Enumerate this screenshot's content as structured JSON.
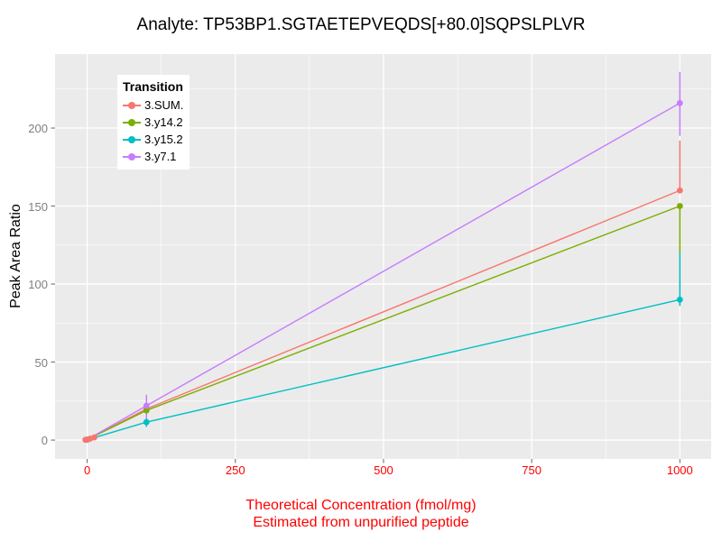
{
  "title": "Analyte: TP53BP1.SGTAETEPVEQDS[+80.0]SQPSLPLVR",
  "y_axis": {
    "label": "Peak Area Ratio"
  },
  "x_axis": {
    "title_line1": "Theoretical Concentration (fmol/mg)",
    "title_line2": "Estimated from unpurified peptide"
  },
  "legend": {
    "title": "Transition",
    "items": [
      {
        "label": "3.SUM.",
        "color": "#F8766D"
      },
      {
        "label": "3.y14.2",
        "color": "#7CAE00"
      },
      {
        "label": "3.y15.2",
        "color": "#00BFC4"
      },
      {
        "label": "3.y7.1",
        "color": "#C77CFF"
      }
    ]
  },
  "colors": {
    "panel_background": "#EBEBEB",
    "gridline": "#FFFFFF",
    "axis_tick": "#666666",
    "x_tick_text": "#FF0000",
    "y_tick_text": "#7F7F7F",
    "x_axis_title": "#FF0000",
    "title_text": "#000000"
  },
  "chart_data": {
    "type": "line",
    "title": "Analyte: TP53BP1.SGTAETEPVEQDS[+80.0]SQPSLPLVR",
    "xlabel": "Theoretical Concentration (fmol/mg) — Estimated from unpurified peptide",
    "ylabel": "Peak Area Ratio",
    "xlim": [
      -54.2,
      1052.8
    ],
    "ylim": [
      -12.1,
      247.4
    ],
    "x_ticks": [
      0,
      250,
      500,
      750,
      1000
    ],
    "y_ticks": [
      0,
      50,
      100,
      150,
      200
    ],
    "x_minor": [
      125,
      375,
      625,
      875
    ],
    "y_minor": [
      25,
      75,
      125,
      175,
      225
    ],
    "grid": true,
    "legend_position": "inside-top-left",
    "series": [
      {
        "name": "3.SUM.",
        "color": "#F8766D",
        "x": [
          0,
          100,
          1000
        ],
        "y": [
          0.3,
          20,
          160
        ],
        "err_low": [
          null,
          16.5,
          160
        ],
        "err_high": [
          null,
          23,
          192
        ]
      },
      {
        "name": "3.y14.2",
        "color": "#7CAE00",
        "x": [
          0,
          100,
          1000
        ],
        "y": [
          0.3,
          19,
          150
        ],
        "err_low": [
          null,
          null,
          120
        ],
        "err_high": [
          null,
          null,
          150
        ]
      },
      {
        "name": "3.y15.2",
        "color": "#00BFC4",
        "x": [
          0,
          100,
          1000
        ],
        "y": [
          0.2,
          11.5,
          90
        ],
        "err_low": [
          null,
          8.5,
          86
        ],
        "err_high": [
          null,
          14,
          120
        ]
      },
      {
        "name": "3.y7.1",
        "color": "#C77CFF",
        "x": [
          0,
          100,
          1000
        ],
        "y": [
          0.3,
          22,
          216
        ],
        "err_low": [
          null,
          14,
          195
        ],
        "err_high": [
          null,
          29,
          236
        ]
      }
    ],
    "origin_replicates": {
      "series": "3.SUM.",
      "color": "#F8766D",
      "points": [
        {
          "x": -3,
          "y": 0.2
        },
        {
          "x": 5,
          "y": 0.9
        },
        {
          "x": 12,
          "y": 1.7
        }
      ]
    }
  }
}
